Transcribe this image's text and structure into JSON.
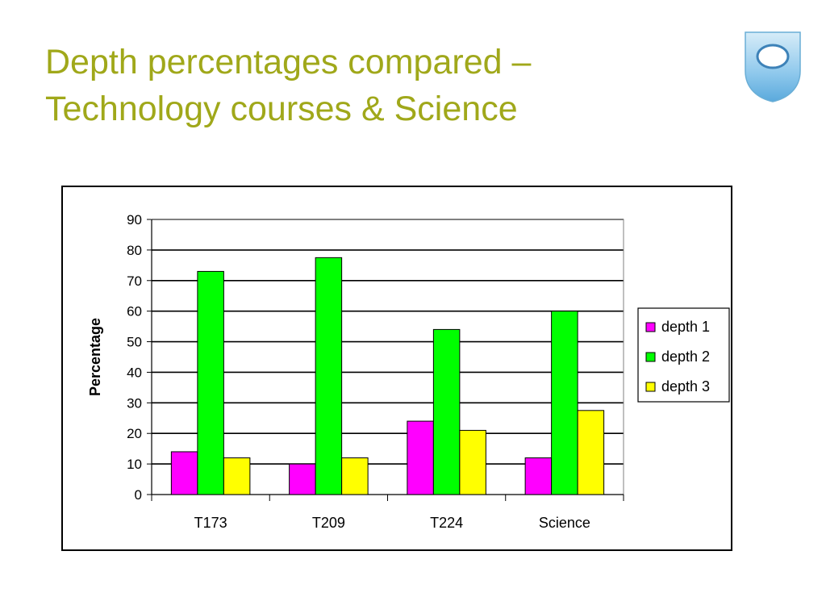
{
  "slide": {
    "title_line1": "Depth percentages compared –",
    "title_line2": "Technology courses & Science",
    "accent_color": "#a0a81a",
    "logo_icon": "open-university-shield-icon"
  },
  "chart_data": {
    "type": "bar",
    "categories": [
      "T173",
      "T209",
      "T224",
      "Science"
    ],
    "series": [
      {
        "name": "depth 1",
        "color": "#ff00ff",
        "values": [
          14,
          10,
          24,
          12
        ]
      },
      {
        "name": "depth 2",
        "color": "#00ff00",
        "values": [
          73,
          77.5,
          54,
          60
        ]
      },
      {
        "name": "depth 3",
        "color": "#ffff00",
        "values": [
          12,
          12,
          21,
          27.5
        ]
      }
    ],
    "title": "",
    "xlabel": "",
    "ylabel": "Percentage",
    "ylim": [
      0,
      90
    ],
    "yticks": [
      0,
      10,
      20,
      30,
      40,
      50,
      60,
      70,
      80,
      90
    ],
    "grid": true,
    "legend_position": "right"
  }
}
